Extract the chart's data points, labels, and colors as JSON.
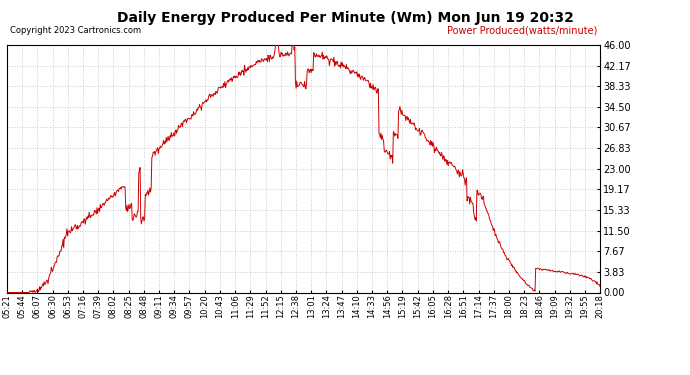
{
  "title": "Daily Energy Produced Per Minute (Wm) Mon Jun 19 20:32",
  "copyright": "Copyright 2023 Cartronics.com",
  "legend_label": "Power Produced(watts/minute)",
  "line_color": "#cc0000",
  "background_color": "#ffffff",
  "grid_color": "#bbbbbb",
  "yticks": [
    0.0,
    3.83,
    7.67,
    11.5,
    15.33,
    19.17,
    23.0,
    26.83,
    30.67,
    34.5,
    38.33,
    42.17,
    46.0
  ],
  "ymax": 46.0,
  "ymin": 0.0,
  "xtick_labels": [
    "05:21",
    "05:44",
    "06:07",
    "06:30",
    "06:53",
    "07:16",
    "07:39",
    "08:02",
    "08:25",
    "08:48",
    "09:11",
    "09:34",
    "09:57",
    "10:20",
    "10:43",
    "11:06",
    "11:29",
    "11:52",
    "12:15",
    "12:38",
    "13:01",
    "13:24",
    "13:47",
    "14:10",
    "14:33",
    "14:56",
    "15:19",
    "15:42",
    "16:05",
    "16:28",
    "16:51",
    "17:14",
    "17:37",
    "18:00",
    "18:23",
    "18:46",
    "19:09",
    "19:32",
    "19:55",
    "20:18"
  ],
  "peak_value": 44.5,
  "peak_minute": 445,
  "sigma": 210,
  "n_points": 910,
  "noise_seed": 17
}
